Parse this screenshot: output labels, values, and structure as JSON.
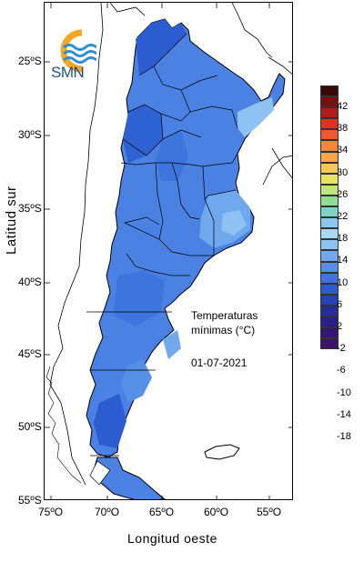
{
  "map": {
    "title_line1": "Temperaturas",
    "title_line2": "mínimas (°C)",
    "date": "01-07-2021",
    "x_axis_label": "Longitud oeste",
    "y_axis_label": "Latitud sur",
    "lat_ticks": [
      "25ºS",
      "30ºS",
      "35ºS",
      "40ºS",
      "45ºS",
      "50ºS",
      "55ºS"
    ],
    "lon_ticks": [
      "75ºO",
      "70ºO",
      "65ºO",
      "60ºO",
      "55ºO"
    ],
    "logo_text": "SMN"
  },
  "legend": {
    "labels": [
      "42",
      "38",
      "34",
      "30",
      "26",
      "22",
      "18",
      "14",
      "10",
      "6",
      "2",
      "-2",
      "-6",
      "-10",
      "-14",
      "-18"
    ],
    "colors": [
      "#3a0a0a",
      "#7a1010",
      "#b31b1b",
      "#e03020",
      "#f05a28",
      "#f7853a",
      "#f9a64a",
      "#f4c855",
      "#e6e35c",
      "#bfe477",
      "#93dc95",
      "#7fd2c8",
      "#87c8ef",
      "#a8d8f8",
      "#8ec2f3",
      "#6fa8ec",
      "#5590e6",
      "#3d75dd",
      "#2c5ccf",
      "#2444b6",
      "#232e9a",
      "#2a1f86",
      "#321874",
      "#3d1566"
    ]
  }
}
